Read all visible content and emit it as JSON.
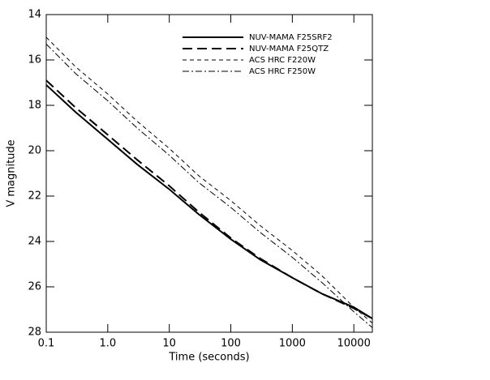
{
  "chart_data": {
    "type": "line",
    "x_label": "Time (seconds)",
    "y_label": "V magnitude",
    "x": [
      0.1,
      0.3,
      1,
      3,
      10,
      30,
      100,
      300,
      1000,
      3000,
      10000,
      20000
    ],
    "series": [
      {
        "name": "NUV-MAMA F25SRF2",
        "color": "#000000",
        "width": 2,
        "dash": "none",
        "values": [
          17.1,
          18.3,
          19.5,
          20.6,
          21.7,
          22.8,
          23.9,
          24.8,
          25.6,
          26.3,
          26.9,
          27.4
        ]
      },
      {
        "name": "NUV-MAMA F25QTZ",
        "color": "#000000",
        "width": 2,
        "dash": "12 6",
        "values": [
          16.9,
          18.1,
          19.3,
          20.4,
          21.55,
          22.7,
          23.85,
          24.75,
          25.6,
          26.3,
          26.95,
          27.4
        ]
      },
      {
        "name": "ACS HRC F220W",
        "color": "#000000",
        "width": 1,
        "dash": "5 4",
        "values": [
          15.0,
          16.3,
          17.5,
          18.7,
          19.9,
          21.1,
          22.2,
          23.3,
          24.4,
          25.5,
          26.9,
          27.6
        ]
      },
      {
        "name": "ACS HRC F250W",
        "color": "#000000",
        "width": 1,
        "dash": "8 3 2 3",
        "values": [
          15.3,
          16.6,
          17.8,
          19.0,
          20.2,
          21.4,
          22.5,
          23.6,
          24.7,
          25.8,
          27.1,
          27.8
        ]
      }
    ],
    "x_log": true,
    "xlim": [
      0.1,
      20000
    ],
    "xticks": [
      0.1,
      {
        "value": 1,
        "label": "1.0"
      },
      10,
      100,
      1000,
      10000
    ],
    "ylim": [
      14,
      28
    ],
    "y_inverted": true,
    "yticks": [
      14,
      16,
      18,
      20,
      22,
      24,
      26,
      28
    ],
    "legend": "top-right"
  }
}
